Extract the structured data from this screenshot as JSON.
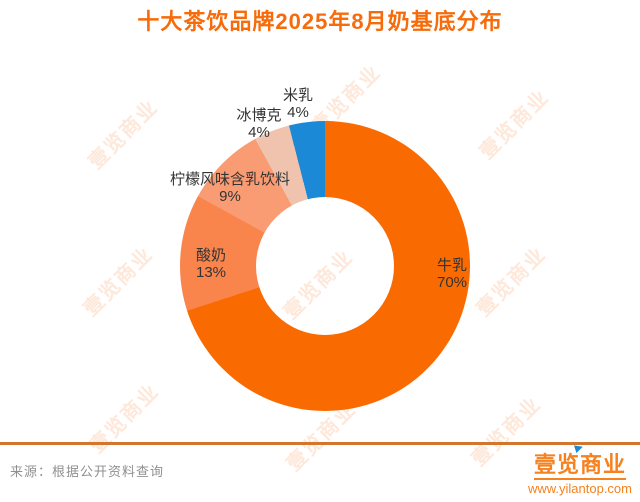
{
  "page": {
    "background": "#FFFFFF"
  },
  "chart_data": {
    "type": "pie",
    "subtype": "donut",
    "title": "十大茶饮品牌2025年8月奶基底分布",
    "title_color": "#F76B0A",
    "direction": "clockwise",
    "start_angle_deg": 0,
    "inner_radius_ratio": 0.475,
    "label_text_color": "#333333",
    "legend": "none",
    "segments": [
      {
        "label": "牛乳",
        "value": 70,
        "display": "70%",
        "color": "#F96B00"
      },
      {
        "label": "酸奶",
        "value": 13,
        "display": "13%",
        "color": "#F9854D"
      },
      {
        "label": "柠檬风味含乳饮料",
        "value": 9,
        "display": "9%",
        "color": "#FA9C73"
      },
      {
        "label": "冰博克",
        "value": 4,
        "display": "4%",
        "color": "#F0C3AE"
      },
      {
        "label": "米乳",
        "value": 4,
        "display": "4%",
        "color": "#1C89D6"
      }
    ]
  },
  "watermark": {
    "text": "壹览商业",
    "color": "#F97316"
  },
  "footer": {
    "source": "来源：根据公开资料查询",
    "divider_color": "#D2762E",
    "brand": "壹览商业",
    "url": "www.yilantop.com",
    "brand_color": "#F5821F",
    "flag_color": "#1C89D6"
  }
}
